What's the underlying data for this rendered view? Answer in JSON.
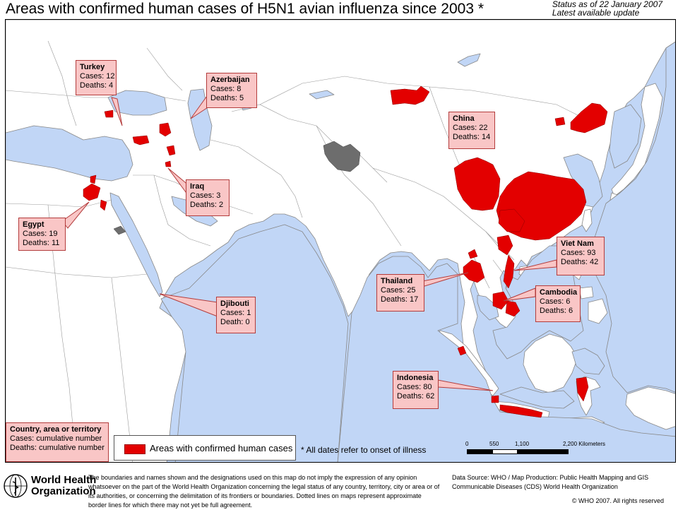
{
  "title": "Areas with confirmed human cases of H5N1 avian influenza since 2003 *",
  "status": {
    "line1": "Status as of 22 January 2007",
    "line2": "Latest available update"
  },
  "callouts": [
    {
      "id": "turkey",
      "country": "Turkey",
      "cases": "Cases: 12",
      "deaths": "Deaths: 4"
    },
    {
      "id": "azerbaijan",
      "country": "Azerbaijan",
      "cases": "Cases: 8",
      "deaths": "Deaths: 5"
    },
    {
      "id": "china",
      "country": "China",
      "cases": "Cases: 22",
      "deaths": "Deaths: 14"
    },
    {
      "id": "iraq",
      "country": "Iraq",
      "cases": "Cases: 3",
      "deaths": "Deaths: 2"
    },
    {
      "id": "egypt",
      "country": "Egypt",
      "cases": "Cases: 19",
      "deaths": "Deaths: 11"
    },
    {
      "id": "vietnam",
      "country": "Viet Nam",
      "cases": "Cases: 93",
      "deaths": "Deaths: 42"
    },
    {
      "id": "thailand",
      "country": "Thailand",
      "cases": "Cases: 25",
      "deaths": "Deaths: 17"
    },
    {
      "id": "cambodia",
      "country": "Cambodia",
      "cases": "Cases: 6",
      "deaths": "Deaths: 6"
    },
    {
      "id": "djibouti",
      "country": "Djibouti",
      "cases": "Cases: 1",
      "deaths": "Death: 0"
    },
    {
      "id": "indonesia",
      "country": "Indonesia",
      "cases": "Cases: 80",
      "deaths": "Deaths: 62"
    }
  ],
  "legend": {
    "country_title": "Country, area or territory",
    "cases_line": "Cases: cumulative number",
    "deaths_line": "Deaths: cumulative number",
    "areas_label": "Areas with confirmed human cases",
    "dates_note": "*  All dates refer to onset of illness"
  },
  "scale": {
    "ticks": [
      "0",
      "550",
      "1,100",
      "2,200 Kilometers"
    ]
  },
  "footer": {
    "org_line1": "World Health",
    "org_line2": "Organization",
    "disclaimer": "The boundaries and names shown and the designations used on this map do not imply the expression of any opinion whatsoever on the part of the World Health Organization concerning the legal status of any country, territory, city or area or of its authorities, or concerning the delimitation of its frontiers or boundaries. Dotted lines on maps represent approximate border lines for which there may not yet be full agreement.",
    "source_line1": "Data Source: WHO / Map Production: Public Health Mapping and GIS",
    "source_line2": "Communicable Diseases (CDS) World Health Organization",
    "copyright": "© WHO 2007. All rights reserved"
  },
  "colors": {
    "water": "#c1d6f6",
    "land": "#ffffff",
    "border": "#888888",
    "affected": "#e30000",
    "disputed": "#6d6d6d",
    "callout_fill": "#f9c6c6"
  }
}
